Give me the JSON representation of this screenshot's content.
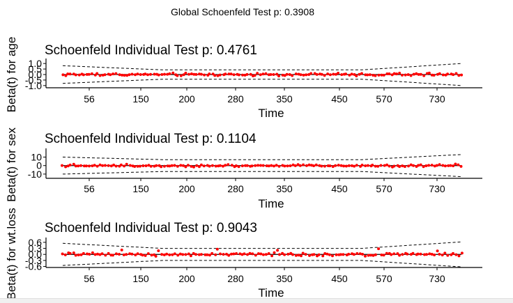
{
  "figure": {
    "title": "Global Schoenfeld Test p: 0.3908"
  },
  "chart_data": [
    {
      "type": "scatter",
      "title": "Schoenfeld Individual Test p: 0.4761",
      "xlabel": "Time",
      "ylabel": "Beta(t) for age",
      "xticks": [
        "56",
        "150",
        "200",
        "280",
        "350",
        "450",
        "570",
        "730"
      ],
      "yticks": [
        {
          "label": "1.0",
          "value": 1.0
        },
        {
          "label": "0.5",
          "value": 0.5
        },
        {
          "label": "0.0",
          "value": 0.0
        },
        {
          "label": "-0.5",
          "value": -0.5
        },
        {
          "label": "-1.0",
          "value": -1.0
        }
      ],
      "ylim": [
        -1.2,
        1.2
      ],
      "grid": false,
      "spread": 0.12,
      "band_start": 0.8,
      "band_mid": 0.42,
      "band_end": 1.0,
      "outliers": [],
      "point_color": "#ff0000",
      "line_color": "#000000"
    },
    {
      "type": "scatter",
      "title": "Schoenfeld Individual Test p: 0.1104",
      "xlabel": "Time",
      "ylabel": "Beta(t) for sex",
      "xticks": [
        "56",
        "150",
        "200",
        "280",
        "350",
        "450",
        "570",
        "730"
      ],
      "yticks": [
        {
          "label": "10",
          "value": 10
        },
        {
          "label": "0",
          "value": 0
        },
        {
          "label": "-10",
          "value": -10
        }
      ],
      "ylim": [
        -15,
        17
      ],
      "grid": false,
      "spread": 1.3,
      "band_start": 10,
      "band_mid": 7,
      "band_end": 13,
      "outliers": [],
      "point_color": "#ff0000",
      "line_color": "#000000"
    },
    {
      "type": "scatter",
      "title": "Schoenfeld Individual Test p: 0.9043",
      "xlabel": "Time",
      "ylabel": "Beta(t) for wt.loss",
      "xticks": [
        "56",
        "150",
        "200",
        "280",
        "350",
        "450",
        "570",
        "730"
      ],
      "yticks": [
        {
          "label": "0.6",
          "value": 0.6
        },
        {
          "label": "0.3",
          "value": 0.3
        },
        {
          "label": "0.0",
          "value": 0.0
        },
        {
          "label": "-0.3",
          "value": -0.3
        },
        {
          "label": "-0.6",
          "value": -0.6
        }
      ],
      "ylim": [
        -0.65,
        0.7
      ],
      "grid": false,
      "spread": 0.07,
      "band_start": 0.55,
      "band_mid": 0.3,
      "band_end": 0.62,
      "outliers": [
        {
          "i": 22,
          "y": 0.22
        },
        {
          "i": 36,
          "y": 0.18
        },
        {
          "i": 58,
          "y": 0.26
        },
        {
          "i": 80,
          "y": 0.2
        },
        {
          "i": 118,
          "y": 0.28
        },
        {
          "i": 140,
          "y": 0.17
        }
      ],
      "point_color": "#ff0000",
      "line_color": "#000000"
    }
  ]
}
